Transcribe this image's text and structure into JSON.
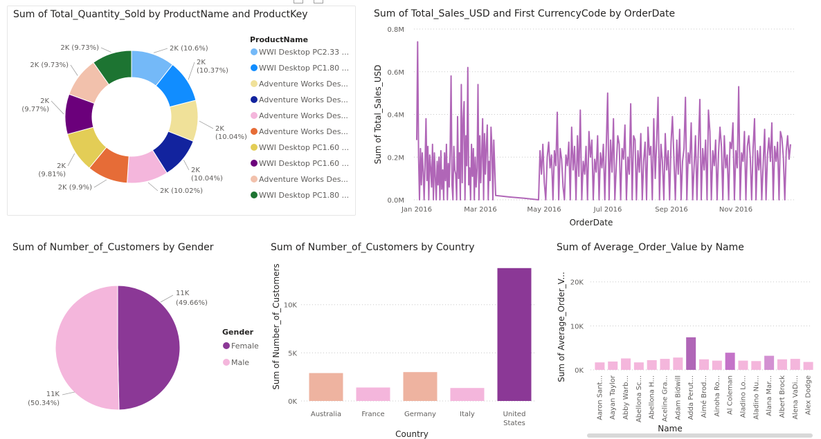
{
  "colors": {
    "purple": "#b066b7",
    "dark_purple": "#8b3896",
    "pink": "#f4b6dc",
    "salmon": "#eeb3a0",
    "grid": "#c8c8c8",
    "axis_text": "#605e5c"
  },
  "chart_data": [
    {
      "type": "donut",
      "title": "Sum of Total_Quantity_Sold by ProductName and ProductKey",
      "legend_title": "ProductName",
      "legend_placement": "right",
      "slices": [
        {
          "legend": "WWI Desktop PC2.33 ...",
          "label": "2K (10.6%)",
          "percent": 10.6,
          "color": "#74b9f8"
        },
        {
          "legend": "WWI Desktop PC1.80 ...",
          "label": "2K (10.37%)",
          "percent": 10.37,
          "color": "#118dff"
        },
        {
          "legend": "Adventure Works Des...",
          "label": "2K (10.04%)",
          "percent": 10.04,
          "color": "#f0e199"
        },
        {
          "legend": "Adventure Works Des...",
          "label": "2K (10.04%)",
          "percent": 10.04,
          "color": "#12239e"
        },
        {
          "legend": "Adventure Works Des...",
          "label": "2K (10.02%)",
          "percent": 10.02,
          "color": "#f4b6dc"
        },
        {
          "legend": "Adventure Works Des...",
          "label": "2K (9.9%)",
          "percent": 9.9,
          "color": "#e66c37"
        },
        {
          "legend": "WWI Desktop PC1.60 ...",
          "label": "2K (9.81%)",
          "percent": 9.81,
          "color": "#e3cd56"
        },
        {
          "legend": "WWI Desktop PC1.60 ...",
          "label": "2K (9.77%)",
          "percent": 9.77,
          "color": "#6b007b"
        },
        {
          "legend": "Adventure Works Des...",
          "label": "2K (9.73%)",
          "percent": 9.73,
          "color": "#f2c1ac"
        },
        {
          "legend": "WWI Desktop PC1.80 ...",
          "label": "2K (9.73%)",
          "percent": 9.73,
          "color": "#1d7432"
        }
      ]
    },
    {
      "type": "line",
      "title": "Sum of Total_Sales_USD and First CurrencyCode by OrderDate",
      "xlabel": "OrderDate",
      "ylabel": "Sum of Total_Sales_USD",
      "x_ticks": [
        "Jan 2016",
        "Mar 2016",
        "May 2016",
        "Jul 2016",
        "Sep 2016",
        "Nov 2016"
      ],
      "y_ticks": [
        "0.0M",
        "0.2M",
        "0.4M",
        "0.6M",
        "0.8M"
      ],
      "ylim": [
        0,
        800000
      ],
      "grid": true,
      "series": [
        {
          "values": [
            280000,
            740000,
            200000,
            0,
            240000,
            70000,
            220000,
            130000,
            0,
            180000,
            380000,
            90000,
            250000,
            0,
            210000,
            150000,
            60000,
            260000,
            0,
            220000,
            110000,
            0,
            180000,
            70000,
            200000,
            0,
            230000,
            50000,
            140000,
            0,
            220000,
            90000,
            260000,
            0,
            170000,
            60000,
            230000,
            580000,
            70000,
            0,
            250000,
            140000,
            120000,
            0,
            390000,
            100000,
            220000,
            0,
            540000,
            80000,
            380000,
            460000,
            0,
            300000,
            160000,
            620000,
            70000,
            150000,
            0,
            260000,
            110000,
            240000,
            0,
            200000,
            60000,
            150000,
            540000,
            0,
            300000,
            80000,
            210000,
            380000,
            0,
            310000,
            120000,
            250000,
            350000,
            0,
            180000,
            90000,
            340000,
            250000,
            0,
            280000,
            150000,
            20000,
            13000,
            7000,
            0,
            230000,
            120000,
            260000,
            80000,
            0,
            200000,
            270000,
            150000,
            210000,
            0,
            230000,
            160000,
            410000,
            0,
            240000,
            190000,
            60000,
            0,
            210000,
            160000,
            270000,
            0,
            340000,
            140000,
            250000,
            0,
            300000,
            110000,
            420000,
            0,
            180000,
            120000,
            250000,
            0,
            320000,
            200000,
            280000,
            0,
            190000,
            130000,
            300000,
            0,
            220000,
            150000,
            260000,
            0,
            250000,
            500000,
            0,
            280000,
            130000,
            380000,
            0,
            160000,
            300000,
            260000,
            0,
            240000,
            190000,
            350000,
            0,
            200000,
            120000,
            450000,
            0,
            300000,
            280000,
            0,
            230000,
            130000,
            310000,
            0,
            180000,
            270000,
            0,
            340000,
            210000,
            250000,
            0,
            380000,
            100000,
            280000,
            480000,
            0,
            260000,
            180000,
            0,
            310000,
            140000,
            230000,
            0,
            270000,
            390000,
            200000,
            0,
            280000,
            120000,
            330000,
            0,
            180000,
            240000,
            480000,
            0,
            220000,
            170000,
            360000,
            0,
            150000,
            300000,
            0,
            250000,
            470000,
            0,
            240000,
            140000,
            280000,
            0,
            420000,
            320000,
            0,
            230000,
            160000,
            280000,
            0,
            220000,
            340000,
            250000,
            0,
            300000,
            150000,
            210000,
            0,
            270000,
            240000,
            360000,
            0,
            230000,
            150000,
            530000,
            0,
            220000,
            180000,
            320000,
            0,
            250000,
            300000,
            200000,
            0,
            240000,
            380000,
            0,
            230000,
            140000,
            250000,
            0,
            170000,
            330000,
            0,
            210000,
            290000,
            180000,
            360000,
            0,
            250000,
            180000,
            270000,
            0,
            320000,
            290000,
            200000,
            0,
            230000,
            300000,
            190000,
            260000
          ],
          "x_dates": "daily, Jan 2016 - Dec 2016",
          "gap": {
            "from": "Mar 2016",
            "to": "May 2016"
          }
        }
      ]
    },
    {
      "type": "pie",
      "title": "Sum of Number_of_Customers by Gender",
      "legend_title": "Gender",
      "legend_placement": "right",
      "slices": [
        {
          "name": "Female",
          "label": "11K",
          "pct_label": "(49.66%)",
          "percent": 49.66,
          "color": "#8b3896"
        },
        {
          "name": "Male",
          "label": "11K",
          "pct_label": "(50.34%)",
          "percent": 50.34,
          "color": "#f4b6dc"
        }
      ]
    },
    {
      "type": "bar",
      "title": "Sum of Number_of_Customers by Country",
      "xlabel": "Country",
      "ylabel": "Sum of Number_of_Customers",
      "y_ticks": [
        "0K",
        "5K",
        "10K"
      ],
      "ylim": [
        0,
        14000
      ],
      "grid": true,
      "categories": [
        "Australia",
        "France",
        "Germany",
        "Italy",
        "United States"
      ],
      "values": [
        2900,
        1400,
        3000,
        1350,
        13800
      ],
      "bar_colors": [
        "#eeb3a0",
        "#f4b6dc",
        "#eeb3a0",
        "#f4b6dc",
        "#8b3896"
      ]
    },
    {
      "type": "bar",
      "title": "Sum of Average_Order_Value by Name",
      "xlabel": "Name",
      "ylabel": "Sum of Average_Order_V...",
      "y_ticks": [
        "0K",
        "10K",
        "20K"
      ],
      "ylim": [
        0,
        22000
      ],
      "grid": true,
      "categories": [
        "Aaron Sant...",
        "Aayan Taylor",
        "Abby Warb...",
        "Abellona Sc...",
        "Abellona H...",
        "Aceline Gra...",
        "Adam Bidwill",
        "Adda Perut...",
        "Aimé Brod...",
        "Ainoha Ro...",
        "Al Coleman",
        "Aladino Lo...",
        "Aladino Nu...",
        "Alana Mar...",
        "Albert Brock",
        "Alena VaDi...",
        "Alex Dodge"
      ],
      "values": [
        1700,
        1900,
        2600,
        1700,
        2200,
        2500,
        2800,
        7400,
        2400,
        2100,
        3900,
        2100,
        2000,
        3200,
        2400,
        2500,
        1800
      ],
      "bar_colors": [
        "#f4b6dc",
        "#f4b6dc",
        "#f4b6dc",
        "#f4b6dc",
        "#f4b6dc",
        "#f4b6dc",
        "#f4b6dc",
        "#b066b7",
        "#f4b6dc",
        "#f4b6dc",
        "#c473c8",
        "#f4b6dc",
        "#f4b6dc",
        "#d391d2",
        "#f4b6dc",
        "#f4b6dc",
        "#f4b6dc"
      ]
    }
  ]
}
